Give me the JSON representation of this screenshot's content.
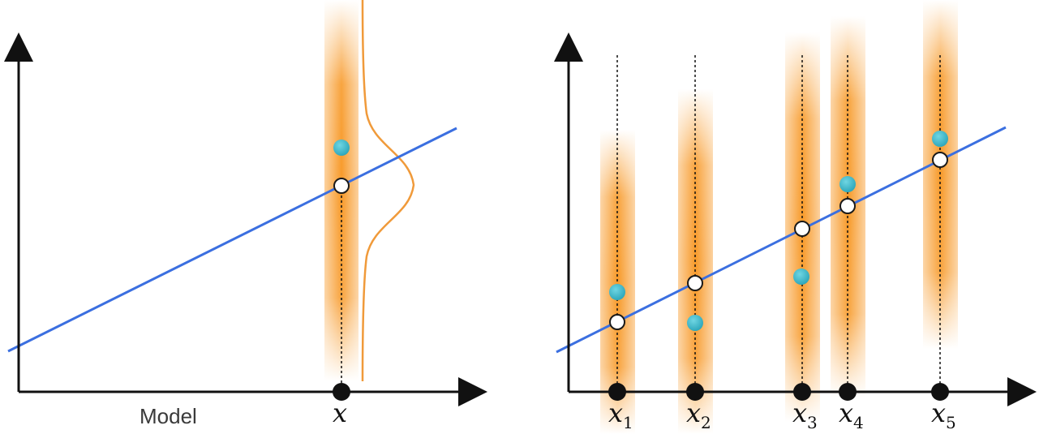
{
  "left_panel": {
    "caption": "Model",
    "x_label": "x",
    "colors": {
      "line": "#3b6fe0",
      "band": "#f7941d",
      "observed": "#3bb6c8",
      "predicted_fill": "#ffffff",
      "predicted_stroke": "#1a1a1a",
      "density": "#f09a3a"
    }
  },
  "right_panel": {
    "points": [
      {
        "label": "x",
        "subscript": "1"
      },
      {
        "label": "x",
        "subscript": "2"
      },
      {
        "label": "x",
        "subscript": "3"
      },
      {
        "label": "x",
        "subscript": "4"
      },
      {
        "label": "x",
        "subscript": "5"
      }
    ]
  },
  "icons": {
    "axis_arrow": "arrowhead-icon",
    "x_marker": "filled-circle-icon"
  }
}
